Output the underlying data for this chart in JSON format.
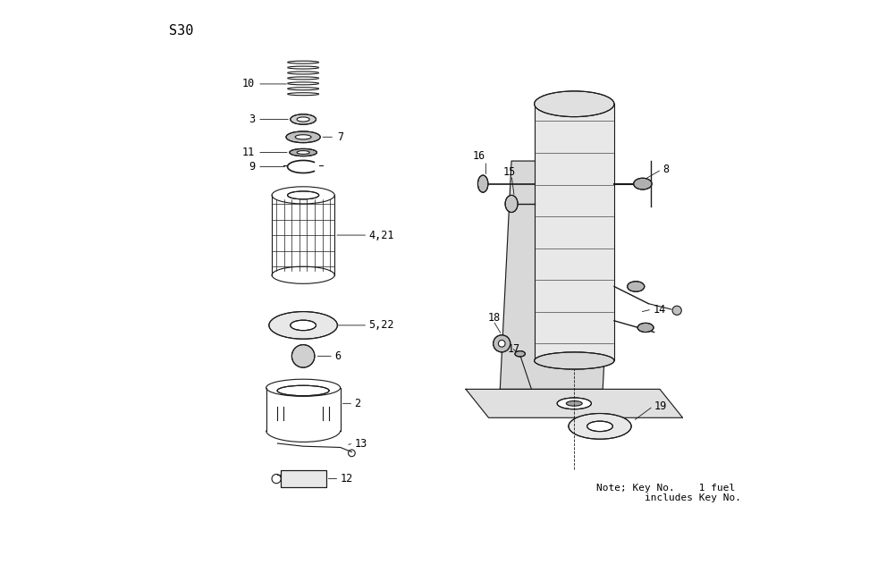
{
  "title": "S30",
  "background_color": "#ffffff",
  "text_color": "#000000",
  "line_color": "#1a1a1a",
  "note_text": "Note; Key No.    1 fuel\n        includes Key No.",
  "fig_width": 9.91,
  "fig_height": 6.41,
  "dpi": 100
}
